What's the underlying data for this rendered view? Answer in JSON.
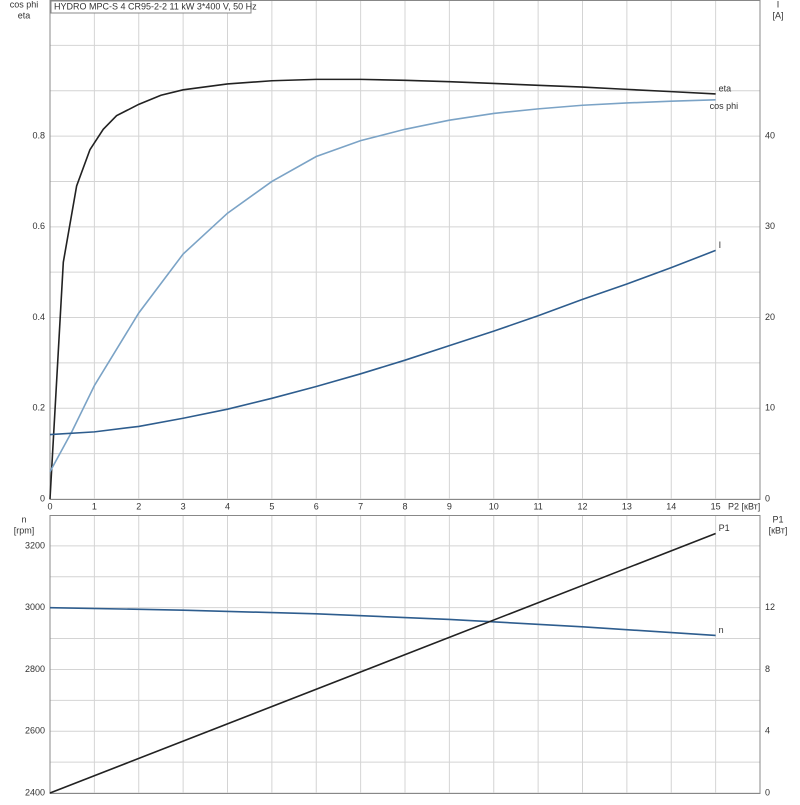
{
  "chart_data": [
    {
      "type": "line",
      "title": "HYDRO MPC-S 4 CR95-2-2   11 kW   3*400 V, 50 Hz",
      "ylabel": [
        "cos phi",
        "eta"
      ],
      "y2label": [
        "I",
        "[A]"
      ],
      "xlabel": "P2 [кВт]",
      "xlim": [
        0,
        16
      ],
      "xticks": [
        0,
        1,
        2,
        3,
        4,
        5,
        6,
        7,
        8,
        9,
        10,
        11,
        12,
        13,
        14,
        15
      ],
      "ylim": [
        0,
        1.1
      ],
      "yticks": [
        0,
        0.2,
        0.4,
        0.6,
        0.8
      ],
      "ygrid": [
        0.1,
        0.3,
        0.5,
        0.7,
        0.9,
        1.0
      ],
      "y2lim": [
        0,
        55
      ],
      "y2ticks": [
        0,
        10,
        20,
        30,
        40
      ],
      "grid": true,
      "series": [
        {
          "name": "eta",
          "color": "#222222",
          "x": [
            0,
            0.3,
            0.6,
            0.9,
            1.2,
            1.5,
            2,
            2.5,
            3,
            4,
            5,
            6,
            7,
            8,
            9,
            10,
            11,
            12,
            13,
            14,
            15
          ],
          "values": [
            0,
            0.522,
            0.69,
            0.77,
            0.815,
            0.845,
            0.87,
            0.89,
            0.902,
            0.915,
            0.922,
            0.925,
            0.925,
            0.923,
            0.92,
            0.916,
            0.912,
            0.908,
            0.903,
            0.898,
            0.893
          ]
        },
        {
          "name": "cos phi",
          "color": "#7ba3c6",
          "x": [
            0,
            0.5,
            1,
            2,
            3,
            4,
            5,
            6,
            7,
            8,
            9,
            10,
            11,
            12,
            13,
            14,
            15
          ],
          "values": [
            0.06,
            0.15,
            0.25,
            0.41,
            0.54,
            0.63,
            0.7,
            0.755,
            0.79,
            0.815,
            0.835,
            0.85,
            0.86,
            0.868,
            0.873,
            0.877,
            0.88
          ]
        },
        {
          "name": "I",
          "color": "#2e5d8e",
          "axis": "y2",
          "x": [
            0,
            1,
            2,
            3,
            4,
            5,
            6,
            7,
            8,
            9,
            10,
            11,
            12,
            13,
            14,
            15
          ],
          "values": [
            7.1,
            7.4,
            8.0,
            8.9,
            9.9,
            11.1,
            12.4,
            13.8,
            15.3,
            16.9,
            18.5,
            20.2,
            22.0,
            23.7,
            25.5,
            27.4
          ]
        }
      ]
    },
    {
      "type": "line",
      "ylabel": [
        "n",
        "[rpm]"
      ],
      "y2label": [
        "P1",
        "[кВт]"
      ],
      "xlim": [
        0,
        16
      ],
      "xgrid": [
        0,
        1,
        2,
        3,
        4,
        5,
        6,
        7,
        8,
        9,
        10,
        11,
        12,
        13,
        14,
        15
      ],
      "ylim": [
        2400,
        3300
      ],
      "yticks": [
        2400,
        2600,
        2800,
        3000,
        3200
      ],
      "ygrid": [
        2500,
        2700,
        2900,
        3100
      ],
      "y2lim": [
        0,
        18
      ],
      "y2ticks": [
        0,
        4,
        8,
        12
      ],
      "grid": true,
      "series": [
        {
          "name": "n",
          "color": "#2e5d8e",
          "x": [
            0,
            3,
            6,
            9,
            12,
            15
          ],
          "values": [
            3000,
            2992,
            2980,
            2962,
            2938,
            2910
          ]
        },
        {
          "name": "P1",
          "color": "#222222",
          "axis": "y2",
          "x": [
            0,
            15
          ],
          "values": [
            0,
            16.8
          ]
        }
      ]
    }
  ]
}
